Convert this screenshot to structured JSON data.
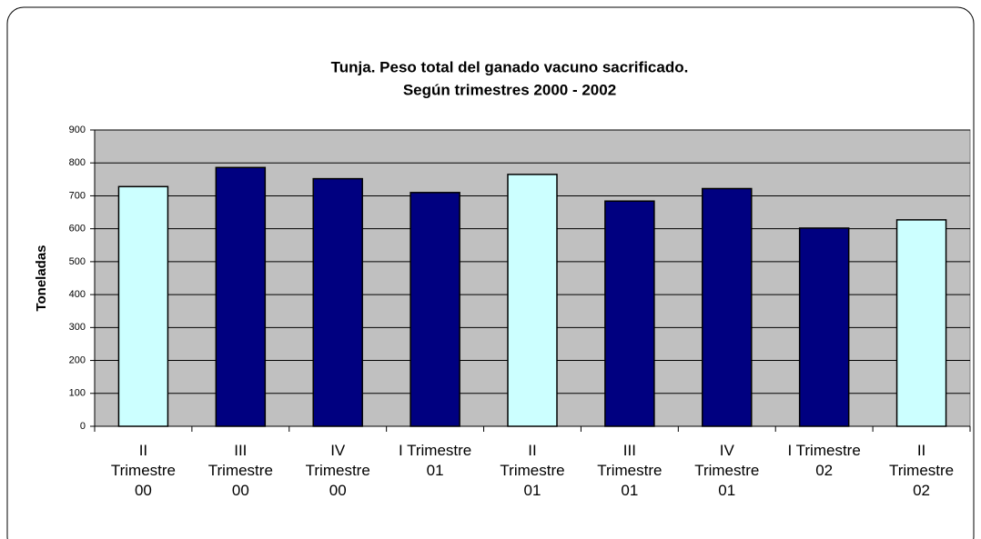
{
  "chart_data": {
    "type": "bar",
    "title": [
      "Tunja.  Peso total del ganado vacuno sacrificado.",
      "Según trimestres 2000 - 2002"
    ],
    "y_label": "Toneladas",
    "categories": [
      "II Trimestre 00",
      "III Trimestre 00",
      "IV Trimestre 00",
      "I Trimestre 01",
      "II Trimestre 01",
      "III Trimestre 01",
      "IV Trimestre 01",
      "I Trimestre 02",
      "II Trimestre 02"
    ],
    "values": [
      728,
      786,
      752,
      710,
      765,
      684,
      722,
      602,
      627
    ],
    "colors": [
      "#ccffff",
      "#000080",
      "#000080",
      "#000080",
      "#ccffff",
      "#000080",
      "#000080",
      "#000080",
      "#ccffff"
    ],
    "ylim": [
      0,
      900
    ],
    "yticks": [
      0,
      100,
      200,
      300,
      400,
      500,
      600,
      700,
      800,
      900
    ],
    "grid": true
  }
}
